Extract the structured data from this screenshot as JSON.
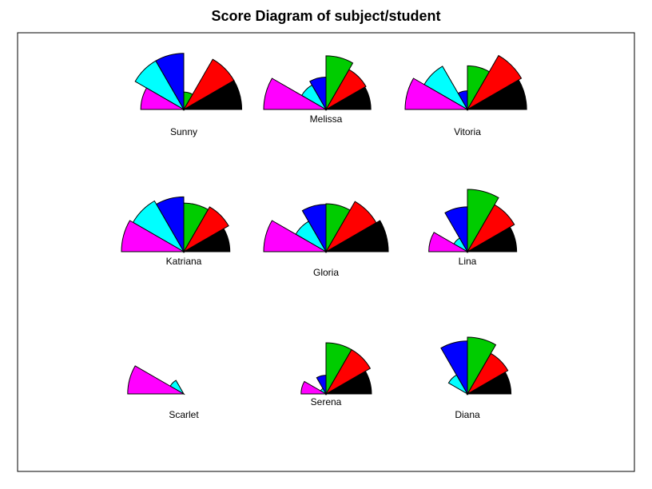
{
  "chart_data": {
    "type": "segment-star",
    "title": "Score Diagram of subject/student",
    "segment_order": [
      "black",
      "red",
      "green",
      "blue",
      "cyan",
      "magenta"
    ],
    "segment_colors": [
      "#000000",
      "#ff0000",
      "#00cc00",
      "#0000ff",
      "#00ffff",
      "#ff00ff"
    ],
    "layout": {
      "columns": 3,
      "rows": 3,
      "draw_segments": true,
      "half_circle": true,
      "box": true
    },
    "students": [
      {
        "name": "Sunny",
        "values": [
          0.93,
          0.93,
          0.28,
          0.9,
          0.9,
          0.69
        ]
      },
      {
        "name": "Melissa",
        "values": [
          0.72,
          0.74,
          0.86,
          0.52,
          0.45,
          1.0
        ]
      },
      {
        "name": "Vitoria",
        "values": [
          0.95,
          1.0,
          0.7,
          0.3,
          0.8,
          1.0
        ]
      },
      {
        "name": "Katriana",
        "values": [
          0.74,
          0.83,
          0.78,
          0.88,
          0.94,
          1.0
        ]
      },
      {
        "name": "Gloria",
        "values": [
          1.0,
          0.93,
          0.77,
          0.76,
          0.56,
          1.0
        ]
      },
      {
        "name": "Lina",
        "values": [
          0.79,
          0.87,
          1.0,
          0.72,
          0.25,
          0.62
        ]
      },
      {
        "name": "Scarlet",
        "values": [
          0.0,
          0.0,
          0.0,
          0.0,
          0.25,
          0.9
        ]
      },
      {
        "name": "Serena",
        "values": [
          0.73,
          0.82,
          0.82,
          0.3,
          0.1,
          0.4
        ]
      },
      {
        "name": "Diana",
        "values": [
          0.7,
          0.75,
          0.91,
          0.85,
          0.35,
          0.0
        ]
      }
    ]
  }
}
